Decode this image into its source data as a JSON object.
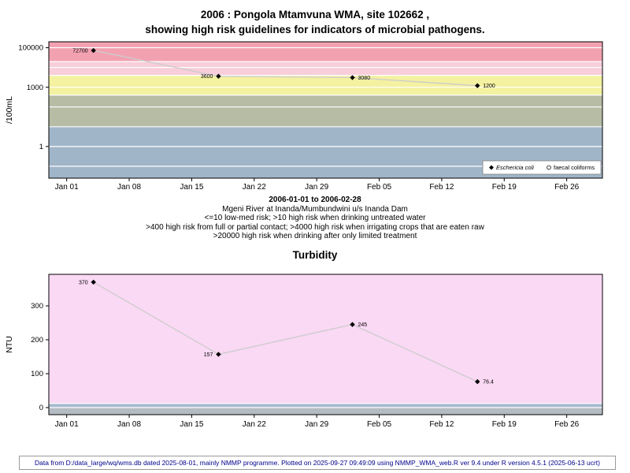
{
  "page": {
    "background": "#ffffff"
  },
  "header": {
    "title_line1": "2006 : Pongola Mtamvuna WMA, site 102662 ,",
    "title_line2": "showing high risk guidelines for indicators of microbial pathogens."
  },
  "captions": {
    "date_range": "2006-01-01 to 2006-02-28",
    "station": "Mgeni River at Inanda/Mumbundwini u/s Inanda Dam",
    "risk_line1": "<=10 low-med risk; >10 high risk when drinking untreated water",
    "risk_line2": ">400 high risk from full or partial contact; >4000 high risk when irrigating crops that are eaten raw",
    "risk_line3": ">20000 high risk when drinking after only limited treatment"
  },
  "turbidity_title": "Turbidity",
  "footer": {
    "text": "Data from D:/data_large/wq/wms.db dated 2025-08-01, mainly NMMP programme. Plotted on 2025-09-27 09:49:09 using NMMP_WMA_web.R ver 9.4 under R version 4.5.1 (2025-06-13 ucrt)"
  },
  "chart_data": [
    {
      "id": "microbial",
      "type": "line",
      "title": "2006 : Pongola Mtamvuna WMA, site 102662 , showing high risk guidelines for indicators of microbial pathogens.",
      "ylabel": "/100mL",
      "xlabel": "2006-01-01 to 2006-02-28",
      "y_scale": "log10",
      "ylim": [
        0.025,
        200000
      ],
      "yticks": [
        {
          "v": 1,
          "label": "1"
        },
        {
          "v": 1000,
          "label": "1000"
        },
        {
          "v": 100000,
          "label": "100000"
        }
      ],
      "gridlines": [
        0.1,
        1,
        10,
        100,
        1000,
        10000,
        100000
      ],
      "x_ticks": [
        "Jan 01",
        "Jan 08",
        "Jan 15",
        "Jan 22",
        "Jan 29",
        "Feb 05",
        "Feb 12",
        "Feb 19",
        "Feb 26"
      ],
      "x_tick_days": [
        0,
        7,
        14,
        21,
        28,
        35,
        42,
        49,
        56
      ],
      "x_domain_days": [
        -2,
        60
      ],
      "series": [
        {
          "name": "Eschericia coli",
          "marker": "diamond",
          "dates": [
            "2006-01-04",
            "2006-01-18",
            "2006-02-02",
            "2006-02-16"
          ],
          "x_days": [
            3,
            17,
            32,
            46
          ],
          "values": [
            72700,
            3600,
            3080,
            1200
          ],
          "labels": [
            "72700",
            "3600",
            "3080",
            "1200"
          ],
          "label_side": [
            "left",
            "left",
            "right",
            "right"
          ]
        }
      ],
      "legend": [
        {
          "marker": "diamond",
          "label": "Eschericia coli",
          "italic": true
        },
        {
          "marker": "circle",
          "label": "faecal coliforms",
          "italic": false
        }
      ],
      "legend_position": "bottom-right",
      "bands": [
        {
          "from": 20000,
          "to": null,
          "color": "#F2A1B1",
          "meaning": ">20000 high risk when drinking after only limited treatment"
        },
        {
          "from": 4000,
          "to": 20000,
          "color": "#F8CEDA",
          "meaning": ">4000 high risk when irrigating crops that are eaten raw"
        },
        {
          "from": 400,
          "to": 4000,
          "color": "#F4F1A1",
          "meaning": ">400 high risk from full or partial contact"
        },
        {
          "from": 10,
          "to": 400,
          "color": "#B7BDA5",
          "meaning": ">10 high risk when drinking untreated water"
        },
        {
          "from": null,
          "to": 10,
          "color": "#A1B5C8",
          "meaning": "<=10 low-med risk"
        }
      ]
    },
    {
      "id": "turbidity",
      "type": "line",
      "title": "Turbidity",
      "ylabel": "NTU",
      "xlabel": "",
      "y_scale": "linear",
      "ylim": [
        -21,
        393
      ],
      "yticks": [
        {
          "v": 0,
          "label": "0"
        },
        {
          "v": 100,
          "label": "100"
        },
        {
          "v": 200,
          "label": "200"
        },
        {
          "v": 300,
          "label": "300"
        }
      ],
      "gridlines": [],
      "x_ticks": [
        "Jan 01",
        "Jan 08",
        "Jan 15",
        "Jan 22",
        "Jan 29",
        "Feb 05",
        "Feb 12",
        "Feb 19",
        "Feb 26"
      ],
      "x_tick_days": [
        0,
        7,
        14,
        21,
        28,
        35,
        42,
        49,
        56
      ],
      "x_domain_days": [
        -2,
        60
      ],
      "series": [
        {
          "name": "Turbidity",
          "marker": "diamond",
          "dates": [
            "2006-01-04",
            "2006-01-18",
            "2006-02-02",
            "2006-02-16"
          ],
          "x_days": [
            3,
            17,
            32,
            46
          ],
          "values": [
            370,
            157,
            245,
            76.4
          ],
          "labels": [
            "370",
            "157",
            "245",
            "76.4"
          ],
          "label_side": [
            "left",
            "left",
            "right",
            "right"
          ]
        }
      ],
      "bands": [
        {
          "from": 12,
          "to": null,
          "color": "#FAD9F4",
          "meaning": ""
        },
        {
          "from": 0,
          "to": 12,
          "color": "#A6BACE",
          "meaning": ""
        },
        {
          "from": null,
          "to": 0,
          "color": "#B4BBC2",
          "meaning": ""
        }
      ]
    }
  ]
}
